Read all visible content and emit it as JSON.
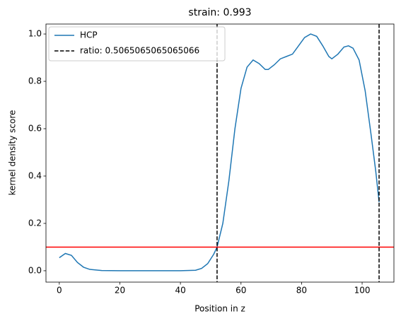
{
  "chart_data": {
    "type": "line",
    "title": "strain: 0.993",
    "xlabel": "Position in z",
    "ylabel": "kernel density score",
    "x": [
      0,
      2,
      4,
      6,
      8,
      10,
      14,
      20,
      30,
      40,
      45,
      47,
      49,
      51,
      52.1,
      54,
      56,
      58,
      60,
      62,
      64,
      66,
      68,
      69,
      71,
      73,
      75,
      77,
      79,
      81,
      83,
      85,
      87,
      89,
      90,
      92,
      94,
      95.5,
      97,
      99,
      101,
      103,
      104.5,
      105.6
    ],
    "series": [
      {
        "name": "HCP",
        "color": "#1f77b4",
        "values": [
          0.055,
          0.073,
          0.065,
          0.035,
          0.015,
          0.006,
          0.001,
          0,
          0,
          0,
          0.002,
          0.01,
          0.03,
          0.07,
          0.1,
          0.2,
          0.38,
          0.6,
          0.77,
          0.86,
          0.89,
          0.875,
          0.85,
          0.85,
          0.87,
          0.895,
          0.905,
          0.915,
          0.95,
          0.985,
          1.0,
          0.99,
          0.95,
          0.905,
          0.895,
          0.915,
          0.945,
          0.95,
          0.94,
          0.89,
          0.76,
          0.57,
          0.42,
          0.29
        ]
      }
    ],
    "vlines": {
      "name": "ratio: 0.5065065065065066",
      "color": "#000000",
      "values": [
        52.1,
        105.6
      ]
    },
    "hline": {
      "color": "#ff0000",
      "value": 0.1
    },
    "xlim": [
      -4.4,
      110.5
    ],
    "xticks": [
      0,
      20,
      40,
      60,
      80,
      100
    ],
    "ylim": [
      -0.048,
      1.042
    ],
    "yticks": [
      {
        "value": 0,
        "label": "0.0"
      },
      {
        "value": 0.2,
        "label": "0.2"
      },
      {
        "value": 0.4,
        "label": "0.4"
      },
      {
        "value": 0.6,
        "label": "0.6"
      },
      {
        "value": 0.8,
        "label": "0.8"
      },
      {
        "value": 1,
        "label": "1.0"
      }
    ],
    "legend": "upper left",
    "grid": false
  }
}
